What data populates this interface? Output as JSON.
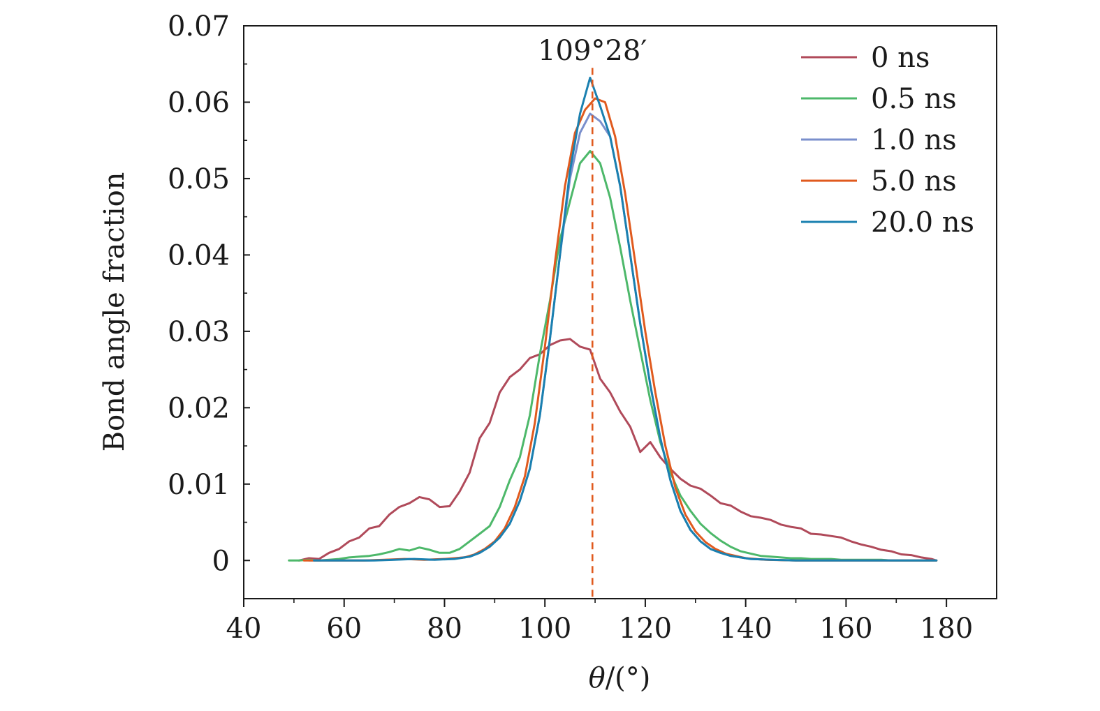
{
  "chart_data": {
    "type": "line",
    "xlabel": "θ/(°)",
    "ylabel": "Bond angle fraction",
    "xlim": [
      40,
      190
    ],
    "ylim": [
      -0.005,
      0.07
    ],
    "x_ticks": [
      40,
      60,
      80,
      100,
      120,
      140,
      160,
      180
    ],
    "x_tick_labels": [
      "40",
      "60",
      "80",
      "100",
      "120",
      "140",
      "160",
      "180"
    ],
    "y_ticks": [
      0,
      0.01,
      0.02,
      0.03,
      0.04,
      0.05,
      0.06,
      0.07
    ],
    "y_tick_labels": [
      "0",
      "0.01",
      "0.02",
      "0.03",
      "0.04",
      "0.05",
      "0.06",
      "0.07"
    ],
    "grid": false,
    "legend_position": "top-right",
    "annotation": {
      "text": "109°28′",
      "x": 109.47,
      "style": "dashed vertical line",
      "color": "#e05a1e"
    },
    "series": [
      {
        "name": "0 ns",
        "color": "#b04a5a",
        "points": [
          [
            51,
            0
          ],
          [
            53,
            0.0003
          ],
          [
            55,
            0.0002
          ],
          [
            57,
            0.001
          ],
          [
            59,
            0.0015
          ],
          [
            61,
            0.0025
          ],
          [
            63,
            0.003
          ],
          [
            65,
            0.0042
          ],
          [
            67,
            0.0045
          ],
          [
            69,
            0.006
          ],
          [
            71,
            0.007
          ],
          [
            73,
            0.0075
          ],
          [
            75,
            0.0083
          ],
          [
            77,
            0.008
          ],
          [
            79,
            0.007
          ],
          [
            81,
            0.0071
          ],
          [
            83,
            0.009
          ],
          [
            85,
            0.0115
          ],
          [
            87,
            0.016
          ],
          [
            89,
            0.018
          ],
          [
            91,
            0.022
          ],
          [
            93,
            0.024
          ],
          [
            95,
            0.025
          ],
          [
            97,
            0.0265
          ],
          [
            99,
            0.027
          ],
          [
            101,
            0.0282
          ],
          [
            103,
            0.0288
          ],
          [
            105,
            0.029
          ],
          [
            107,
            0.028
          ],
          [
            109,
            0.0276
          ],
          [
            111,
            0.0238
          ],
          [
            113,
            0.022
          ],
          [
            115,
            0.0195
          ],
          [
            117,
            0.0175
          ],
          [
            119,
            0.0142
          ],
          [
            121,
            0.0155
          ],
          [
            123,
            0.0135
          ],
          [
            125,
            0.012
          ],
          [
            127,
            0.0107
          ],
          [
            129,
            0.0098
          ],
          [
            131,
            0.0094
          ],
          [
            133,
            0.0085
          ],
          [
            135,
            0.0075
          ],
          [
            137,
            0.0072
          ],
          [
            139,
            0.0064
          ],
          [
            141,
            0.0058
          ],
          [
            143,
            0.0056
          ],
          [
            145,
            0.0053
          ],
          [
            147,
            0.0047
          ],
          [
            149,
            0.0044
          ],
          [
            151,
            0.0042
          ],
          [
            153,
            0.0035
          ],
          [
            155,
            0.0034
          ],
          [
            157,
            0.0032
          ],
          [
            159,
            0.003
          ],
          [
            161,
            0.0025
          ],
          [
            163,
            0.0021
          ],
          [
            165,
            0.0018
          ],
          [
            167,
            0.0014
          ],
          [
            169,
            0.0012
          ],
          [
            171,
            0.0008
          ],
          [
            173,
            0.0007
          ],
          [
            175,
            0.0004
          ],
          [
            177,
            0.0002
          ],
          [
            178,
            0
          ]
        ]
      },
      {
        "name": "0.5 ns",
        "color": "#4db86a",
        "points": [
          [
            49,
            0
          ],
          [
            51,
            0
          ],
          [
            53,
            0.0001
          ],
          [
            55,
            0
          ],
          [
            57,
            0.0001
          ],
          [
            59,
            0.0002
          ],
          [
            61,
            0.0004
          ],
          [
            63,
            0.0005
          ],
          [
            65,
            0.0006
          ],
          [
            67,
            0.0008
          ],
          [
            69,
            0.0011
          ],
          [
            71,
            0.0015
          ],
          [
            73,
            0.0013
          ],
          [
            75,
            0.0017
          ],
          [
            77,
            0.0014
          ],
          [
            79,
            0.001
          ],
          [
            81,
            0.001
          ],
          [
            83,
            0.0015
          ],
          [
            85,
            0.0025
          ],
          [
            87,
            0.0035
          ],
          [
            89,
            0.0045
          ],
          [
            91,
            0.007
          ],
          [
            93,
            0.0105
          ],
          [
            95,
            0.0135
          ],
          [
            97,
            0.019
          ],
          [
            99,
            0.027
          ],
          [
            101,
            0.034
          ],
          [
            103,
            0.042
          ],
          [
            105,
            0.047
          ],
          [
            107,
            0.052
          ],
          [
            109,
            0.0536
          ],
          [
            111,
            0.052
          ],
          [
            113,
            0.0475
          ],
          [
            115,
            0.041
          ],
          [
            117,
            0.034
          ],
          [
            119,
            0.0275
          ],
          [
            121,
            0.021
          ],
          [
            123,
            0.0155
          ],
          [
            125,
            0.0115
          ],
          [
            127,
            0.0085
          ],
          [
            129,
            0.0065
          ],
          [
            131,
            0.0048
          ],
          [
            133,
            0.0036
          ],
          [
            135,
            0.0026
          ],
          [
            137,
            0.0018
          ],
          [
            139,
            0.0012
          ],
          [
            141,
            0.0009
          ],
          [
            143,
            0.0006
          ],
          [
            145,
            0.0005
          ],
          [
            147,
            0.0004
          ],
          [
            149,
            0.0003
          ],
          [
            151,
            0.0003
          ],
          [
            153,
            0.0002
          ],
          [
            155,
            0.0002
          ],
          [
            157,
            0.0002
          ],
          [
            159,
            0.0001
          ],
          [
            161,
            0.0001
          ],
          [
            163,
            0.0001
          ],
          [
            165,
            0.0001
          ],
          [
            167,
            0.0001
          ],
          [
            169,
            0
          ],
          [
            171,
            0
          ],
          [
            173,
            0
          ],
          [
            175,
            0
          ],
          [
            177,
            0
          ],
          [
            178,
            0
          ]
        ]
      },
      {
        "name": "1.0 ns",
        "color": "#7a8fcc",
        "points": [
          [
            53,
            0
          ],
          [
            57,
            0
          ],
          [
            61,
            0
          ],
          [
            65,
            0
          ],
          [
            69,
            0.0001
          ],
          [
            73,
            0.0002
          ],
          [
            77,
            0.0001
          ],
          [
            81,
            0.0002
          ],
          [
            85,
            0.0005
          ],
          [
            87,
            0.001
          ],
          [
            89,
            0.0018
          ],
          [
            91,
            0.003
          ],
          [
            93,
            0.0048
          ],
          [
            95,
            0.0078
          ],
          [
            97,
            0.012
          ],
          [
            99,
            0.019
          ],
          [
            101,
            0.029
          ],
          [
            103,
            0.04
          ],
          [
            105,
            0.05
          ],
          [
            107,
            0.056
          ],
          [
            109,
            0.0585
          ],
          [
            111,
            0.0575
          ],
          [
            113,
            0.0555
          ],
          [
            115,
            0.049
          ],
          [
            117,
            0.04
          ],
          [
            119,
            0.031
          ],
          [
            121,
            0.023
          ],
          [
            123,
            0.016
          ],
          [
            125,
            0.0105
          ],
          [
            127,
            0.0065
          ],
          [
            129,
            0.004
          ],
          [
            131,
            0.0025
          ],
          [
            133,
            0.0015
          ],
          [
            135,
            0.001
          ],
          [
            137,
            0.0006
          ],
          [
            139,
            0.0004
          ],
          [
            141,
            0.0002
          ],
          [
            145,
            0.0001
          ],
          [
            150,
            0
          ],
          [
            160,
            0
          ],
          [
            170,
            0
          ],
          [
            178,
            0
          ]
        ]
      },
      {
        "name": "5.0 ns",
        "color": "#e05a1e",
        "points": [
          [
            52,
            0
          ],
          [
            56,
            0
          ],
          [
            60,
            0
          ],
          [
            64,
            0
          ],
          [
            68,
            0.0001
          ],
          [
            72,
            0.0002
          ],
          [
            76,
            0.0001
          ],
          [
            80,
            0.0002
          ],
          [
            84,
            0.0004
          ],
          [
            86,
            0.0008
          ],
          [
            88,
            0.0015
          ],
          [
            90,
            0.0025
          ],
          [
            92,
            0.0042
          ],
          [
            94,
            0.007
          ],
          [
            96,
            0.011
          ],
          [
            98,
            0.018
          ],
          [
            100,
            0.028
          ],
          [
            102,
            0.039
          ],
          [
            104,
            0.049
          ],
          [
            106,
            0.056
          ],
          [
            108,
            0.059
          ],
          [
            110,
            0.0605
          ],
          [
            112,
            0.06
          ],
          [
            114,
            0.0555
          ],
          [
            116,
            0.048
          ],
          [
            118,
            0.039
          ],
          [
            120,
            0.03
          ],
          [
            122,
            0.022
          ],
          [
            124,
            0.015
          ],
          [
            126,
            0.0095
          ],
          [
            128,
            0.006
          ],
          [
            130,
            0.0038
          ],
          [
            132,
            0.0024
          ],
          [
            134,
            0.0015
          ],
          [
            136,
            0.0009
          ],
          [
            138,
            0.0006
          ],
          [
            140,
            0.0003
          ],
          [
            144,
            0.0001
          ],
          [
            150,
            0
          ],
          [
            160,
            0
          ],
          [
            170,
            0
          ],
          [
            178,
            0
          ]
        ]
      },
      {
        "name": "20.0 ns",
        "color": "#1a80b0",
        "points": [
          [
            54,
            0
          ],
          [
            58,
            0
          ],
          [
            62,
            0
          ],
          [
            66,
            0
          ],
          [
            70,
            0.0001
          ],
          [
            74,
            0.0002
          ],
          [
            78,
            0.0001
          ],
          [
            82,
            0.0002
          ],
          [
            85,
            0.0005
          ],
          [
            87,
            0.001
          ],
          [
            89,
            0.0018
          ],
          [
            91,
            0.003
          ],
          [
            93,
            0.0048
          ],
          [
            95,
            0.0078
          ],
          [
            97,
            0.012
          ],
          [
            99,
            0.019
          ],
          [
            101,
            0.029
          ],
          [
            103,
            0.04
          ],
          [
            105,
            0.051
          ],
          [
            107,
            0.0585
          ],
          [
            109,
            0.0632
          ],
          [
            111,
            0.0595
          ],
          [
            113,
            0.0555
          ],
          [
            115,
            0.049
          ],
          [
            117,
            0.04
          ],
          [
            119,
            0.031
          ],
          [
            121,
            0.023
          ],
          [
            123,
            0.016
          ],
          [
            125,
            0.0105
          ],
          [
            127,
            0.0065
          ],
          [
            129,
            0.004
          ],
          [
            131,
            0.0025
          ],
          [
            133,
            0.0015
          ],
          [
            135,
            0.001
          ],
          [
            137,
            0.0006
          ],
          [
            139,
            0.0004
          ],
          [
            141,
            0.0002
          ],
          [
            145,
            0.0001
          ],
          [
            150,
            0
          ],
          [
            160,
            0
          ],
          [
            170,
            0
          ],
          [
            178,
            0
          ]
        ]
      }
    ]
  }
}
